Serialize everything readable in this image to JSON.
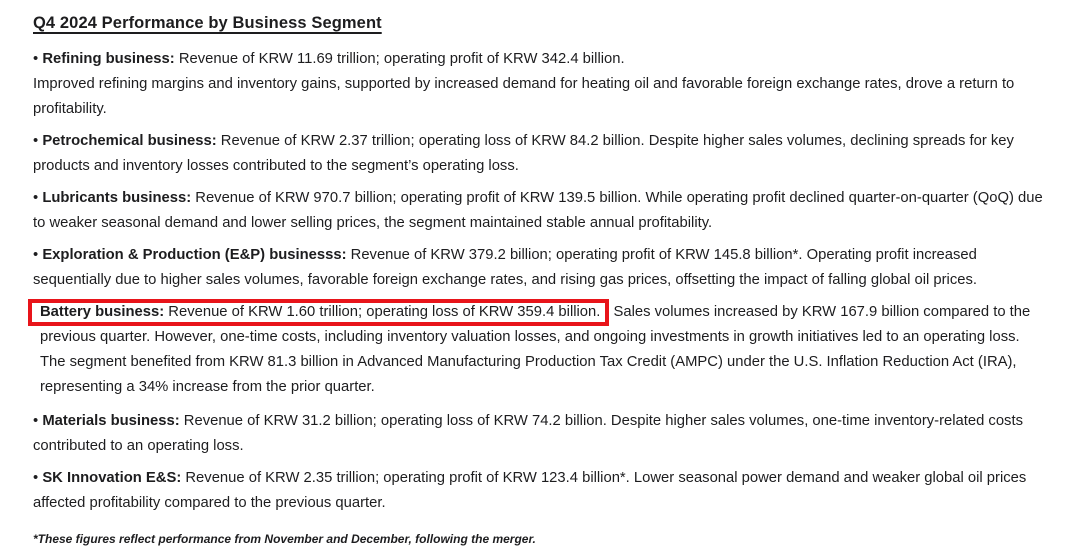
{
  "title": "Q4 2024 Performance by Business Segment",
  "segments": [
    {
      "bullet": "•",
      "label": "Refining business:",
      "body": "Revenue of KRW 11.69 trillion; operating profit of KRW 342.4 billion.",
      "body2": "Improved refining margins and inventory gains, supported by increased demand for heating oil and favorable foreign exchange rates, drove a return to profitability."
    },
    {
      "bullet": "•",
      "label": "Petrochemical business:",
      "body": "Revenue of KRW 2.37 trillion; operating loss of KRW 84.2 billion. Despite higher sales volumes, declining spreads for key products and inventory losses contributed to the segment’s operating loss."
    },
    {
      "bullet": "•",
      "label": "Lubricants business:",
      "body": "Revenue of KRW 970.7 billion; operating profit of KRW 139.5 billion. While operating profit declined quarter-on-quarter (QoQ) due to weaker seasonal demand and lower selling prices, the segment maintained stable annual profitability."
    },
    {
      "bullet": "•",
      "label": "Exploration & Production (E&P) businesss:",
      "body": "Revenue of KRW 379.2 billion; operating profit of KRW 145.8 billion*. Operating profit increased sequentially due to higher sales volumes, favorable foreign exchange rates, and rising gas prices, offsetting the impact of falling global oil prices."
    },
    {
      "bullet": "•",
      "label": "Materials business:",
      "body": "Revenue of KRW 31.2 billion; operating loss of KRW 74.2 billion. Despite higher sales volumes, one-time inventory-related costs contributed to an operating loss."
    },
    {
      "bullet": "•",
      "label": "SK Innovation E&S:",
      "body": "Revenue of KRW 2.35 trillion; operating profit of KRW 123.4 billion*. Lower seasonal power demand and weaker global oil prices affected profitability compared to the previous quarter."
    }
  ],
  "battery": {
    "label": "Battery business:",
    "boxed_text": "Revenue of KRW 1.60 trillion; operating loss of KRW 359.4 billion.",
    "after_text": "Sales volumes increased by KRW 167.9 billion compared to the previous quarter. However, one-time costs, including inventory valuation losses, and ongoing investments in growth initiatives led to an operating loss. The segment benefited from KRW 81.3 billion in Advanced Manufacturing Production Tax Credit (AMPC) under the U.S. Inflation Reduction Act (IRA), representing a 34% increase from the prior quarter."
  },
  "footnote": "*These figures reflect performance from November and December, following the merger.",
  "colors": {
    "annotation_red": "#e8141a",
    "text": "#1d1d1f",
    "background": "#ffffff"
  }
}
